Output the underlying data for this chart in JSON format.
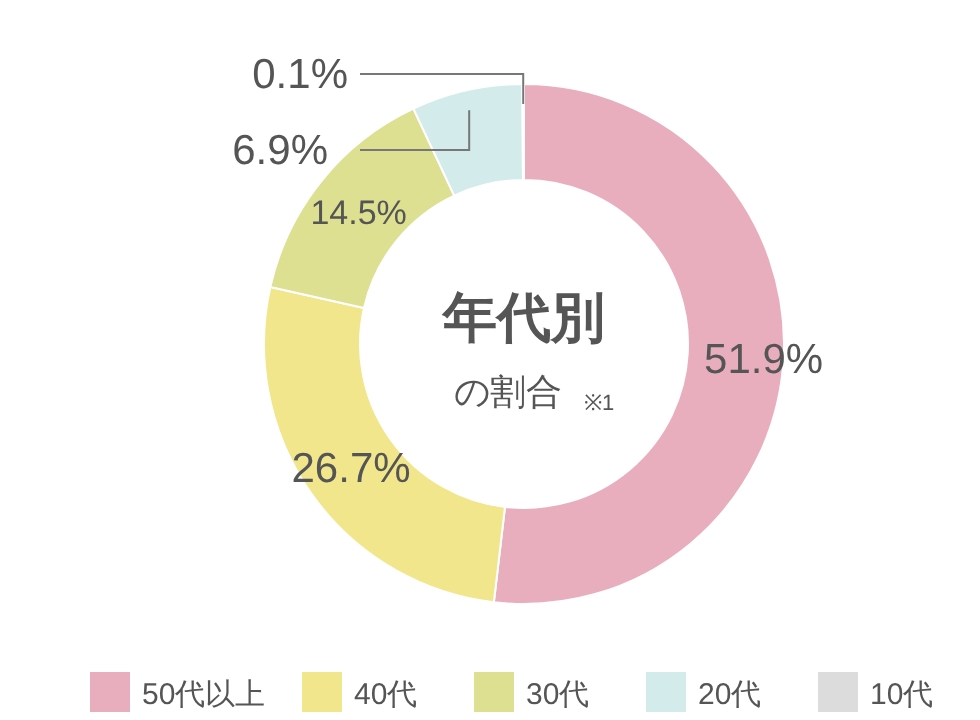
{
  "chart_data": {
    "type": "donut",
    "title": "年代別",
    "subtitle": "の割合",
    "annotations": [
      "※1"
    ],
    "categories": [
      "50代以上",
      "40代",
      "30代",
      "20代",
      "10代"
    ],
    "values": [
      51.9,
      26.7,
      14.5,
      6.9,
      0.1
    ],
    "colors": [
      "#e9aebd",
      "#f1e68b",
      "#dde090",
      "#d3ebeb",
      "#dcdcdc"
    ],
    "value_labels": [
      "51.9%",
      "26.7%",
      "14.5%",
      "6.9%",
      "0.1%"
    ],
    "legend": "bottom"
  }
}
